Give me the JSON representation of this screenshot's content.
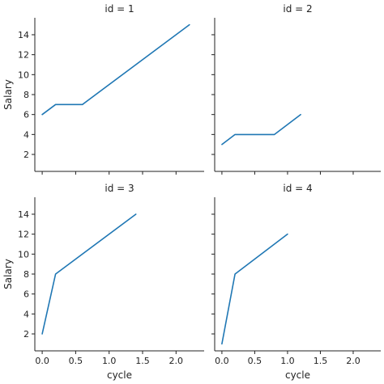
{
  "chart_data": {
    "type": "line",
    "facet_var": "id",
    "xlabel": "cycle",
    "ylabel": "Salary",
    "xticks": [
      0.0,
      0.5,
      1.0,
      1.5,
      2.0
    ],
    "xtick_labels": [
      "0.0",
      "0.5",
      "1.0",
      "1.5",
      "2.0"
    ],
    "yticks": [
      2,
      4,
      6,
      8,
      10,
      12,
      14
    ],
    "ytick_labels": [
      "2",
      "4",
      "6",
      "8",
      "10",
      "12",
      "14"
    ],
    "xlim": [
      -0.11,
      2.42
    ],
    "ylim": [
      0.3,
      15.7
    ],
    "grid": false,
    "sharex": true,
    "sharey": true,
    "color": "#1f77b4",
    "panels": [
      {
        "title": "id = 1",
        "x": [
          0.0,
          0.2,
          0.6,
          2.2
        ],
        "y": [
          6,
          7,
          7,
          15
        ]
      },
      {
        "title": "id = 2",
        "x": [
          0.0,
          0.2,
          0.8,
          1.2
        ],
        "y": [
          3,
          4,
          4,
          6
        ]
      },
      {
        "title": "id = 3",
        "x": [
          0.0,
          0.2,
          1.4
        ],
        "y": [
          2,
          8,
          14
        ]
      },
      {
        "title": "id = 4",
        "x": [
          0.0,
          0.2,
          1.0
        ],
        "y": [
          1,
          8,
          12
        ]
      }
    ]
  }
}
